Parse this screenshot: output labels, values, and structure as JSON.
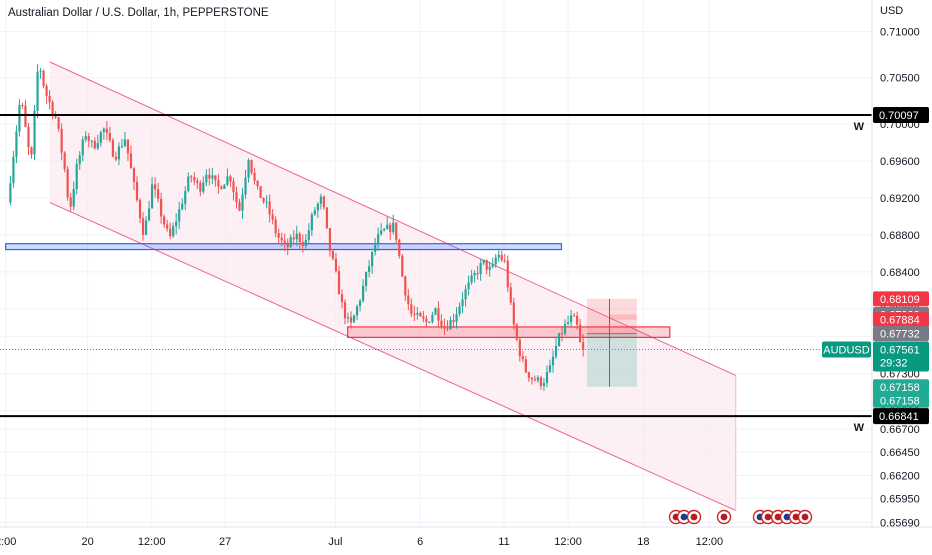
{
  "chart_data": {
    "type": "candlestick",
    "title": "Australian Dollar / U.S. Dollar, 1h, PEPPERSTONE",
    "currency": "USD",
    "symbol": "AUDUSD",
    "last_price": "0.67561",
    "countdown": "29:32",
    "ylim": [
      0.6555,
      0.7125
    ],
    "y_ticks": [
      "0.71000",
      "0.70500",
      "0.70000",
      "0.69600",
      "0.69200",
      "0.68800",
      "0.68400",
      "0.68000",
      "0.67700",
      "0.67300",
      "0.66900",
      "0.66700",
      "0.66450",
      "0.66200",
      "0.65950",
      "0.65690"
    ],
    "x_ticks": [
      {
        "label": "2:00",
        "t": -0.5
      },
      {
        "label": "20",
        "t": 8.2
      },
      {
        "label": "12:00",
        "t": 15.0
      },
      {
        "label": "27",
        "t": 22.8
      },
      {
        "label": "Jul",
        "t": 34.5
      },
      {
        "label": "6",
        "t": 43.5
      },
      {
        "label": "11",
        "t": 52.4
      },
      {
        "label": "12:00",
        "t": 59.2
      },
      {
        "label": "18",
        "t": 67.2
      },
      {
        "label": "12:00",
        "t": 74.2
      }
    ],
    "weekly_levels": [
      {
        "price": 0.70097,
        "label": "0.70097",
        "tag": "W"
      },
      {
        "price": 0.66841,
        "label": "0.66841",
        "tag": "W"
      }
    ],
    "price_labels": [
      {
        "text": "0.68109",
        "price": 0.68109,
        "color": "#f23645"
      },
      {
        "text": "0.67939",
        "price": 0.67939,
        "color": "#787b86"
      },
      {
        "text": "0.67884",
        "price": 0.67884,
        "color": "#f23645"
      },
      {
        "text": "0.67732",
        "price": 0.67732,
        "color": "#787b86"
      },
      {
        "text": "0.67158",
        "price": 0.67158,
        "color": "#22ab94"
      },
      {
        "text": "0.67158",
        "price": 0.67012,
        "color": "#22ab94"
      }
    ],
    "channel": {
      "upper": [
        {
          "t": 4.2,
          "p": 0.7067
        },
        {
          "t": 77.0,
          "p": 0.6728
        }
      ],
      "lower": [
        {
          "t": 4.2,
          "p": 0.6915
        },
        {
          "t": 77.0,
          "p": 0.6582
        }
      ]
    },
    "zones": [
      {
        "t1": -0.5,
        "t2": 58.5,
        "p1": 0.68705,
        "p2": 0.68642,
        "color": "#2962ff"
      },
      {
        "t1": 35.8,
        "t2": 70.0,
        "p1": 0.67805,
        "p2": 0.67692,
        "color": "#f23645"
      }
    ],
    "position": {
      "t1": 61.2,
      "t2": 66.5,
      "t_split": 63.6,
      "entry": 0.67732,
      "stop": 0.68109,
      "target": 0.67158
    },
    "colors": {
      "up": "#26a69a",
      "down": "#ef5350",
      "channel": "#f8a5c2",
      "level": "#000000",
      "grid": "#f0f3fa"
    },
    "close_t": 60.9,
    "waypoints": [
      [
        0,
        0.6915
      ],
      [
        1.4,
        0.703
      ],
      [
        2.5,
        0.6955
      ],
      [
        3.3,
        0.707
      ],
      [
        4.0,
        0.7035
      ],
      [
        5.2,
        0.7005
      ],
      [
        6.1,
        0.695
      ],
      [
        6.6,
        0.6905
      ],
      [
        7.4,
        0.6955
      ],
      [
        8.3,
        0.699
      ],
      [
        9.1,
        0.6975
      ],
      [
        10.2,
        0.6995
      ],
      [
        11.4,
        0.6965
      ],
      [
        12.5,
        0.6985
      ],
      [
        13.4,
        0.6935
      ],
      [
        14.5,
        0.688
      ],
      [
        15.4,
        0.6935
      ],
      [
        16.4,
        0.69
      ],
      [
        17.2,
        0.6875
      ],
      [
        18.2,
        0.6905
      ],
      [
        19.4,
        0.6945
      ],
      [
        20.4,
        0.693
      ],
      [
        21.2,
        0.695
      ],
      [
        22.3,
        0.693
      ],
      [
        23.6,
        0.6945
      ],
      [
        24.6,
        0.6905
      ],
      [
        25.6,
        0.6965
      ],
      [
        26.4,
        0.693
      ],
      [
        27.6,
        0.691
      ],
      [
        28.6,
        0.688
      ],
      [
        29.6,
        0.6865
      ],
      [
        30.6,
        0.688
      ],
      [
        31.6,
        0.687
      ],
      [
        32.5,
        0.6905
      ],
      [
        33.4,
        0.692
      ],
      [
        34.1,
        0.687
      ],
      [
        34.9,
        0.6835
      ],
      [
        35.6,
        0.68
      ],
      [
        36.4,
        0.678
      ],
      [
        37.4,
        0.681
      ],
      [
        38.2,
        0.684
      ],
      [
        39.2,
        0.6875
      ],
      [
        40.1,
        0.6885
      ],
      [
        41.1,
        0.689
      ],
      [
        42.0,
        0.683
      ],
      [
        42.8,
        0.6795
      ],
      [
        43.6,
        0.679
      ],
      [
        44.5,
        0.6785
      ],
      [
        45.4,
        0.68
      ],
      [
        46.4,
        0.678
      ],
      [
        47.4,
        0.679
      ],
      [
        48.4,
        0.6815
      ],
      [
        49.5,
        0.6835
      ],
      [
        50.5,
        0.685
      ],
      [
        51.4,
        0.684
      ],
      [
        52.0,
        0.686
      ],
      [
        52.8,
        0.685
      ],
      [
        53.6,
        0.679
      ],
      [
        54.2,
        0.676
      ],
      [
        54.9,
        0.6735
      ],
      [
        55.7,
        0.6725
      ],
      [
        56.8,
        0.672
      ],
      [
        57.6,
        0.6735
      ],
      [
        58.4,
        0.6765
      ],
      [
        59.1,
        0.678
      ],
      [
        59.9,
        0.679
      ],
      [
        60.4,
        0.6785
      ],
      [
        60.9,
        0.67561
      ]
    ]
  },
  "right_icons": [
    "news-usd-flag-icon",
    "news-aud-flag-icon",
    "news-usd-flag-icon"
  ]
}
